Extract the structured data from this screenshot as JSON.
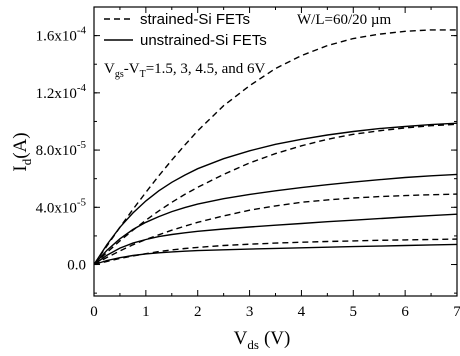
{
  "chart_data": {
    "type": "line",
    "title": "",
    "xlabel_main": "V",
    "xlabel_sub": "ds",
    "xlabel_unit": "(V)",
    "ylabel_main": "I",
    "ylabel_sub": "d",
    "ylabel_unit": "(A)",
    "xlim": [
      0,
      7
    ],
    "ylim": [
      -2.2e-05,
      0.00018
    ],
    "x_ticks": [
      0,
      1,
      2,
      3,
      4,
      5,
      6,
      7
    ],
    "x_tick_labels": [
      "0",
      "1",
      "2",
      "3",
      "4",
      "5",
      "6",
      "7"
    ],
    "y_ticks": [
      0,
      4e-05,
      8e-05,
      0.00012,
      0.00016
    ],
    "y_tick_labels": [
      {
        "mantissa": "0.0",
        "exp": ""
      },
      {
        "mantissa": "4.0x10",
        "exp": "-5"
      },
      {
        "mantissa": "8.0x10",
        "exp": "-5"
      },
      {
        "mantissa": "1.2x10",
        "exp": "-4"
      },
      {
        "mantissa": "1.6x10",
        "exp": "-4"
      }
    ],
    "legend": [
      {
        "label": "strained-Si FETs",
        "style": "dashed"
      },
      {
        "label": "unstrained-Si FETs",
        "style": "solid"
      }
    ],
    "annotations": {
      "geometry": "W/L=60/20 µm",
      "bias_prefix": "V",
      "bias_sub1": "gs",
      "bias_mid": "-V",
      "bias_sub2": "T",
      "bias_values": "=1.5, 3, 4.5, and 6V"
    },
    "x": [
      0,
      0.25,
      0.5,
      0.75,
      1,
      1.25,
      1.5,
      1.75,
      2,
      2.5,
      3,
      3.5,
      4,
      4.5,
      5,
      5.5,
      6,
      6.5,
      7
    ],
    "series": [
      {
        "style": "dashed",
        "values": [
          0,
          2.2e-06,
          4.2e-06,
          6e-06,
          7.6e-06,
          9e-06,
          1.02e-05,
          1.12e-05,
          1.2e-05,
          1.33e-05,
          1.42e-05,
          1.5e-05,
          1.56e-05,
          1.61e-05,
          1.65e-05,
          1.69e-05,
          1.72e-05,
          1.75e-05,
          1.78e-05
        ]
      },
      {
        "style": "dashed",
        "values": [
          0,
          5e-06,
          9.5e-06,
          1.38e-05,
          1.75e-05,
          2.08e-05,
          2.4e-05,
          2.68e-05,
          2.95e-05,
          3.4e-05,
          3.8e-05,
          4.1e-05,
          4.35e-05,
          4.52e-05,
          4.65e-05,
          4.75e-05,
          4.82e-05,
          4.88e-05,
          4.92e-05
        ]
      },
      {
        "style": "dashed",
        "values": [
          0,
          8.5e-06,
          1.65e-05,
          2.4e-05,
          3.1e-05,
          3.75e-05,
          4.35e-05,
          4.9e-05,
          5.4e-05,
          6.3e-05,
          7.1e-05,
          7.75e-05,
          8.3e-05,
          8.75e-05,
          9.1e-05,
          9.35e-05,
          9.55e-05,
          9.7e-05,
          9.8e-05
        ]
      },
      {
        "style": "dashed",
        "values": [
          0,
          1.3e-05,
          2.6e-05,
          3.85e-05,
          5.05e-05,
          6.2e-05,
          7.3e-05,
          8.35e-05,
          9.35e-05,
          0.000111,
          0.000125,
          0.000137,
          0.000146,
          0.000153,
          0.000158,
          0.000161,
          0.000163,
          0.000164,
          0.000164
        ]
      },
      {
        "style": "solid",
        "values": [
          0,
          2.8e-06,
          4.8e-06,
          6.3e-06,
          7.4e-06,
          8.2e-06,
          8.8e-06,
          9.3e-06,
          9.7e-06,
          1.03e-05,
          1.08e-05,
          1.13e-05,
          1.17e-05,
          1.21e-05,
          1.25e-05,
          1.29e-05,
          1.33e-05,
          1.37e-05,
          1.41e-05
        ]
      },
      {
        "style": "solid",
        "values": [
          0,
          6.5e-06,
          1.15e-05,
          1.5e-05,
          1.75e-05,
          1.95e-05,
          2.1e-05,
          2.22e-05,
          2.32e-05,
          2.48e-05,
          2.62e-05,
          2.75e-05,
          2.87e-05,
          2.99e-05,
          3.1e-05,
          3.21e-05,
          3.32e-05,
          3.42e-05,
          3.52e-05
        ]
      },
      {
        "style": "solid",
        "values": [
          0,
          1e-05,
          1.8e-05,
          2.45e-05,
          2.95e-05,
          3.35e-05,
          3.7e-05,
          3.98e-05,
          4.22e-05,
          4.6e-05,
          4.9e-05,
          5.15e-05,
          5.38e-05,
          5.58e-05,
          5.76e-05,
          5.93e-05,
          6.08e-05,
          6.2e-05,
          6.3e-05
        ]
      },
      {
        "style": "solid",
        "values": [
          0,
          1.4e-05,
          2.6e-05,
          3.6e-05,
          4.45e-05,
          5.15e-05,
          5.75e-05,
          6.25e-05,
          6.7e-05,
          7.4e-05,
          7.95e-05,
          8.4e-05,
          8.75e-05,
          9.05e-05,
          9.3e-05,
          9.5e-05,
          9.65e-05,
          9.78e-05,
          9.88e-05
        ]
      }
    ]
  }
}
